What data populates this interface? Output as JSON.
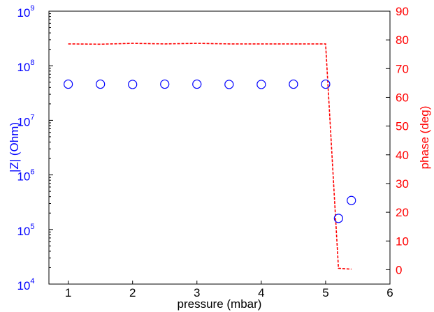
{
  "chart_data": {
    "type": "scatter",
    "colors": {
      "left": "#0000ff",
      "right": "#ff0000",
      "frame": "#000000"
    },
    "xlabel": "pressure (mbar)",
    "xlim": [
      0.7,
      6
    ],
    "xticks": [
      1,
      2,
      3,
      4,
      5,
      6
    ],
    "xtick_labels": [
      "1",
      "2",
      "3",
      "4",
      "5",
      "6"
    ],
    "left_axis": {
      "label": "|Z| (Ohm)",
      "scale": "log",
      "ylim": [
        10000,
        1000000000
      ],
      "ticks": [
        10000,
        100000,
        1000000,
        10000000,
        100000000,
        1000000000
      ],
      "tick_bases": [
        "10",
        "10",
        "10",
        "10",
        "10",
        "10"
      ],
      "tick_exps": [
        "4",
        "5",
        "6",
        "7",
        "8",
        "9"
      ]
    },
    "right_axis": {
      "label": "phase (deg)",
      "scale": "linear",
      "ylim": [
        -5,
        90
      ],
      "ticks": [
        0,
        10,
        20,
        30,
        40,
        50,
        60,
        70,
        80,
        90
      ],
      "tick_labels": [
        "0",
        "10",
        "20",
        "30",
        "40",
        "50",
        "60",
        "70",
        "80",
        "90"
      ]
    },
    "series": [
      {
        "axis": "left",
        "style": "circle-markers",
        "x": [
          1.0,
          1.5,
          2.0,
          2.5,
          3.0,
          3.5,
          4.0,
          4.5,
          5.0,
          5.2,
          5.4
        ],
        "values": [
          46000000,
          46000000,
          45500000,
          46000000,
          46000000,
          45500000,
          45500000,
          46000000,
          46000000,
          160000,
          340000
        ]
      },
      {
        "axis": "right",
        "style": "dashed-line",
        "x": [
          1.0,
          1.5,
          2.0,
          2.5,
          3.0,
          3.5,
          4.0,
          4.5,
          5.0,
          5.2,
          5.4
        ],
        "values": [
          78.6,
          78.5,
          78.8,
          78.6,
          78.8,
          78.6,
          78.6,
          78.6,
          78.6,
          0.5,
          0.2
        ]
      }
    ]
  }
}
